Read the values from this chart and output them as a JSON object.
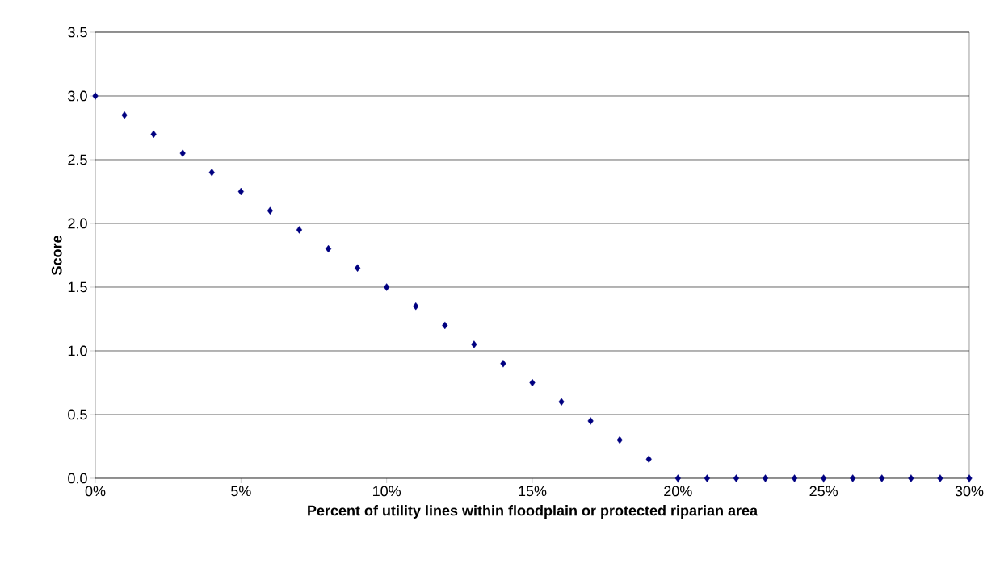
{
  "chart_data": {
    "type": "scatter",
    "xlabel": "Percent of utility lines within floodplain or protected riparian area",
    "ylabel": "Score",
    "x": [
      0,
      1,
      2,
      3,
      4,
      5,
      6,
      7,
      8,
      9,
      10,
      11,
      12,
      13,
      14,
      15,
      16,
      17,
      18,
      19,
      20,
      21,
      22,
      23,
      24,
      25,
      26,
      27,
      28,
      29,
      30
    ],
    "series": [
      {
        "color": "#000080",
        "values": [
          3.0,
          2.85,
          2.7,
          2.55,
          2.4,
          2.25,
          2.1,
          1.95,
          1.8,
          1.65,
          1.5,
          1.35,
          1.2,
          1.05,
          0.9,
          0.75,
          0.6,
          0.45,
          0.3,
          0.15,
          0,
          0,
          0,
          0,
          0,
          0,
          0,
          0,
          0,
          0,
          0
        ]
      }
    ],
    "xlim": [
      0,
      30
    ],
    "xticks": [
      {
        "value": 0,
        "label": "0%"
      },
      {
        "value": 5,
        "label": "5%"
      },
      {
        "value": 10,
        "label": "10%"
      },
      {
        "value": 15,
        "label": "15%"
      },
      {
        "value": 20,
        "label": "20%"
      },
      {
        "value": 25,
        "label": "25%"
      },
      {
        "value": 30,
        "label": "30%"
      }
    ],
    "ylim": [
      0,
      3.5
    ],
    "yticks": [
      {
        "value": 0,
        "label": "0.0"
      },
      {
        "value": 0.5,
        "label": "0.5"
      },
      {
        "value": 1,
        "label": "1.0"
      },
      {
        "value": 1.5,
        "label": "1.5"
      },
      {
        "value": 2,
        "label": "2.0"
      },
      {
        "value": 2.5,
        "label": "2.5"
      },
      {
        "value": 3,
        "label": "3.0"
      },
      {
        "value": 3.5,
        "label": "3.5"
      }
    ],
    "grid": "y",
    "marker": "diamond"
  }
}
